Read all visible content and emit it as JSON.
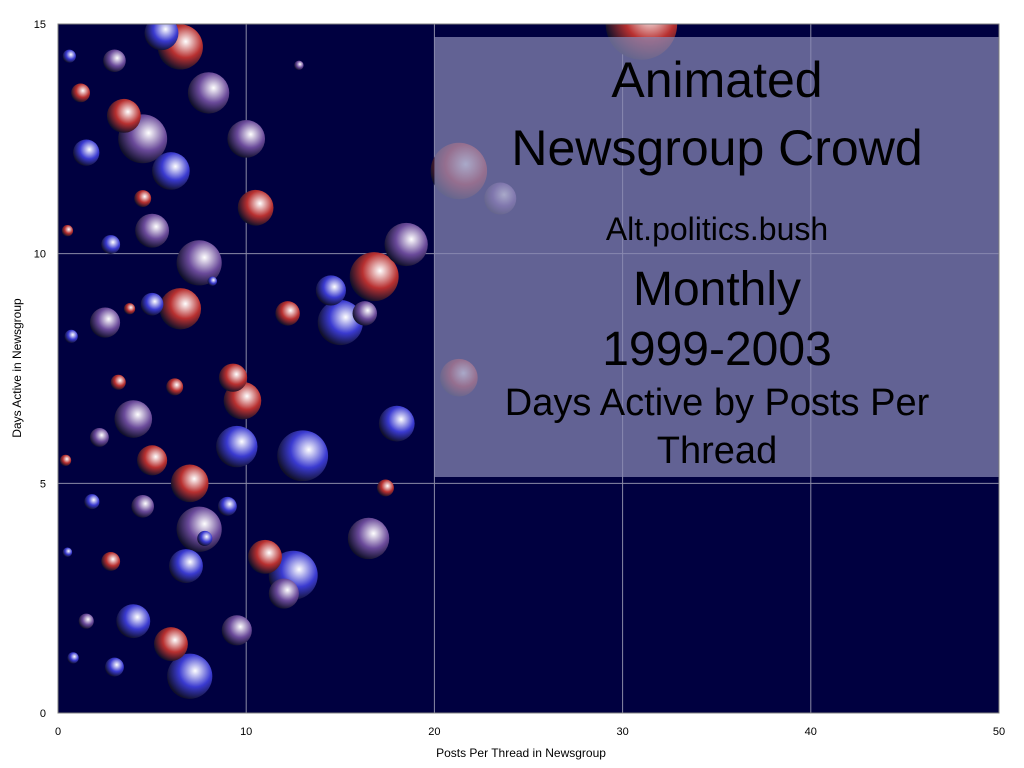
{
  "chart_data": {
    "type": "scatter",
    "subtype": "bubble",
    "title": "Animated Newsgroup Crowd",
    "title_lines": [
      "Animated",
      "Newsgroup Crowd"
    ],
    "subtitle": "Alt.politics.bush",
    "period": "Monthly",
    "years": "1999-2003",
    "description_lines": [
      "Days Active by Posts Per",
      "Thread"
    ],
    "xlabel": "Posts Per Thread in Newsgroup",
    "ylabel": "Days Active in Newsgroup",
    "xlim": [
      0,
      50
    ],
    "ylim": [
      0,
      15
    ],
    "x_ticks": [
      0,
      10,
      20,
      30,
      40,
      50
    ],
    "y_ticks": [
      0,
      5,
      10,
      15
    ],
    "grid": true,
    "legend": "none",
    "colors": {
      "plot_background": "#000040",
      "gridline": "#8a8aa6",
      "blue_bubble": "#3a3ad0",
      "red_bubble": "#b83030",
      "purple_bubble": "#6a4a9a",
      "title_panel": "#8888b4"
    },
    "points": [
      {
        "x": 31.0,
        "y": 15.0,
        "r": 1.9,
        "c": "red"
      },
      {
        "x": 12.8,
        "y": 14.1,
        "r": 0.25,
        "c": "purple"
      },
      {
        "x": 21.3,
        "y": 11.8,
        "r": 1.5,
        "c": "red"
      },
      {
        "x": 23.5,
        "y": 11.2,
        "r": 0.85,
        "c": "purple"
      },
      {
        "x": 18.5,
        "y": 10.2,
        "r": 1.15,
        "c": "purple"
      },
      {
        "x": 16.8,
        "y": 9.5,
        "r": 1.3,
        "c": "red"
      },
      {
        "x": 14.5,
        "y": 9.2,
        "r": 0.8,
        "c": "blue"
      },
      {
        "x": 15.0,
        "y": 8.5,
        "r": 1.2,
        "c": "blue"
      },
      {
        "x": 16.3,
        "y": 8.7,
        "r": 0.65,
        "c": "purple"
      },
      {
        "x": 12.2,
        "y": 8.7,
        "r": 0.65,
        "c": "red"
      },
      {
        "x": 21.3,
        "y": 7.3,
        "r": 1.0,
        "c": "red"
      },
      {
        "x": 18.0,
        "y": 6.3,
        "r": 0.95,
        "c": "blue"
      },
      {
        "x": 13.0,
        "y": 5.6,
        "r": 1.35,
        "c": "blue"
      },
      {
        "x": 17.4,
        "y": 4.9,
        "r": 0.45,
        "c": "red"
      },
      {
        "x": 16.5,
        "y": 3.8,
        "r": 1.1,
        "c": "purple"
      },
      {
        "x": 12.5,
        "y": 3.0,
        "r": 1.3,
        "c": "blue"
      },
      {
        "x": 12.0,
        "y": 2.6,
        "r": 0.8,
        "c": "purple"
      },
      {
        "x": 11.0,
        "y": 3.4,
        "r": 0.9,
        "c": "red"
      },
      {
        "x": 9.5,
        "y": 1.8,
        "r": 0.8,
        "c": "purple"
      },
      {
        "x": 9.8,
        "y": 6.8,
        "r": 1.0,
        "c": "red"
      },
      {
        "x": 9.3,
        "y": 7.3,
        "r": 0.75,
        "c": "red"
      },
      {
        "x": 9.5,
        "y": 5.8,
        "r": 1.1,
        "c": "blue"
      },
      {
        "x": 10.5,
        "y": 11.0,
        "r": 0.95,
        "c": "red"
      },
      {
        "x": 10.0,
        "y": 12.5,
        "r": 1.0,
        "c": "purple"
      },
      {
        "x": 8.0,
        "y": 13.5,
        "r": 1.1,
        "c": "purple"
      },
      {
        "x": 7.5,
        "y": 9.8,
        "r": 1.2,
        "c": "purple"
      },
      {
        "x": 8.2,
        "y": 9.4,
        "r": 0.25,
        "c": "blue"
      },
      {
        "x": 6.5,
        "y": 14.5,
        "r": 1.2,
        "c": "red"
      },
      {
        "x": 5.5,
        "y": 14.8,
        "r": 0.9,
        "c": "blue"
      },
      {
        "x": 6.0,
        "y": 11.8,
        "r": 1.0,
        "c": "blue"
      },
      {
        "x": 5.0,
        "y": 10.5,
        "r": 0.9,
        "c": "purple"
      },
      {
        "x": 6.5,
        "y": 8.8,
        "r": 1.1,
        "c": "red"
      },
      {
        "x": 5.0,
        "y": 8.9,
        "r": 0.6,
        "c": "blue"
      },
      {
        "x": 6.2,
        "y": 7.1,
        "r": 0.45,
        "c": "red"
      },
      {
        "x": 7.0,
        "y": 5.0,
        "r": 1.0,
        "c": "red"
      },
      {
        "x": 7.5,
        "y": 4.0,
        "r": 1.2,
        "c": "purple"
      },
      {
        "x": 6.8,
        "y": 3.2,
        "r": 0.9,
        "c": "blue"
      },
      {
        "x": 7.0,
        "y": 0.8,
        "r": 1.2,
        "c": "blue"
      },
      {
        "x": 6.0,
        "y": 1.5,
        "r": 0.9,
        "c": "red"
      },
      {
        "x": 4.5,
        "y": 12.5,
        "r": 1.3,
        "c": "purple"
      },
      {
        "x": 4.5,
        "y": 11.2,
        "r": 0.45,
        "c": "red"
      },
      {
        "x": 3.5,
        "y": 13.0,
        "r": 0.9,
        "c": "red"
      },
      {
        "x": 3.0,
        "y": 14.2,
        "r": 0.6,
        "c": "purple"
      },
      {
        "x": 4.0,
        "y": 6.4,
        "r": 1.0,
        "c": "purple"
      },
      {
        "x": 5.0,
        "y": 5.5,
        "r": 0.8,
        "c": "red"
      },
      {
        "x": 4.5,
        "y": 4.5,
        "r": 0.6,
        "c": "purple"
      },
      {
        "x": 9.0,
        "y": 4.5,
        "r": 0.5,
        "c": "blue"
      },
      {
        "x": 7.8,
        "y": 3.8,
        "r": 0.4,
        "c": "blue"
      },
      {
        "x": 4.0,
        "y": 2.0,
        "r": 0.9,
        "c": "blue"
      },
      {
        "x": 2.5,
        "y": 8.5,
        "r": 0.8,
        "c": "purple"
      },
      {
        "x": 2.8,
        "y": 10.2,
        "r": 0.5,
        "c": "blue"
      },
      {
        "x": 1.5,
        "y": 12.2,
        "r": 0.7,
        "c": "blue"
      },
      {
        "x": 1.2,
        "y": 13.5,
        "r": 0.5,
        "c": "red"
      },
      {
        "x": 0.6,
        "y": 14.3,
        "r": 0.35,
        "c": "blue"
      },
      {
        "x": 3.8,
        "y": 8.8,
        "r": 0.3,
        "c": "red"
      },
      {
        "x": 3.2,
        "y": 7.2,
        "r": 0.4,
        "c": "red"
      },
      {
        "x": 2.2,
        "y": 6.0,
        "r": 0.5,
        "c": "purple"
      },
      {
        "x": 1.8,
        "y": 4.6,
        "r": 0.4,
        "c": "blue"
      },
      {
        "x": 2.8,
        "y": 3.3,
        "r": 0.5,
        "c": "red"
      },
      {
        "x": 1.5,
        "y": 2.0,
        "r": 0.4,
        "c": "purple"
      },
      {
        "x": 3.0,
        "y": 1.0,
        "r": 0.5,
        "c": "blue"
      },
      {
        "x": 0.8,
        "y": 1.2,
        "r": 0.3,
        "c": "blue"
      },
      {
        "x": 0.5,
        "y": 10.5,
        "r": 0.3,
        "c": "red"
      },
      {
        "x": 0.7,
        "y": 8.2,
        "r": 0.35,
        "c": "blue"
      },
      {
        "x": 0.4,
        "y": 5.5,
        "r": 0.3,
        "c": "red"
      },
      {
        "x": 0.5,
        "y": 3.5,
        "r": 0.25,
        "c": "blue"
      }
    ]
  }
}
